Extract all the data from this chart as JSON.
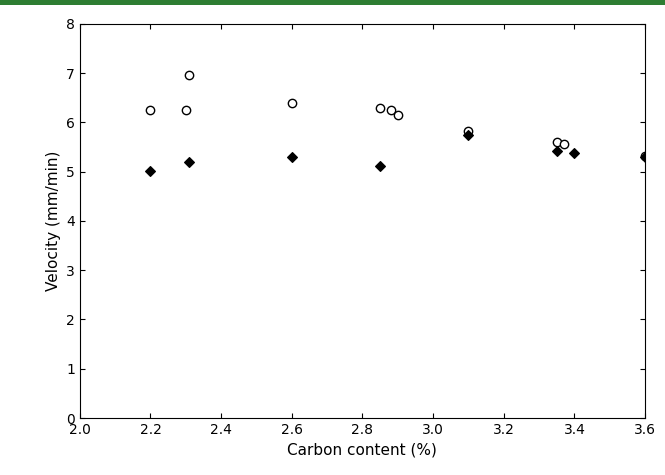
{
  "title": "",
  "xlabel": "Carbon content (%)",
  "ylabel": "Velocity (mm/min)",
  "xlim": [
    2,
    3.6
  ],
  "ylim": [
    0,
    8
  ],
  "xticks": [
    2,
    2.2,
    2.4,
    2.6,
    2.8,
    3.0,
    3.2,
    3.4,
    3.6
  ],
  "yticks": [
    0,
    1,
    2,
    3,
    4,
    5,
    6,
    7,
    8
  ],
  "open_circles_x": [
    2.2,
    2.3,
    2.31,
    2.6,
    2.85,
    2.88,
    2.9,
    3.1,
    3.35,
    3.37,
    3.6
  ],
  "open_circles_y": [
    6.25,
    6.25,
    6.95,
    6.4,
    6.3,
    6.25,
    6.15,
    5.82,
    5.6,
    5.55,
    5.32
  ],
  "filled_diamonds_x": [
    2.2,
    2.31,
    2.6,
    2.85,
    3.1,
    3.35,
    3.4,
    3.6
  ],
  "filled_diamonds_y": [
    5.02,
    5.2,
    5.3,
    5.12,
    5.75,
    5.42,
    5.38,
    5.3
  ],
  "border_color": "#2e7d32",
  "background_color": "#ffffff",
  "plot_bg_color": "#ffffff",
  "marker_size_circle": 6,
  "marker_size_diamond": 5,
  "xlabel_fontsize": 11,
  "ylabel_fontsize": 11,
  "tick_labelsize": 10
}
